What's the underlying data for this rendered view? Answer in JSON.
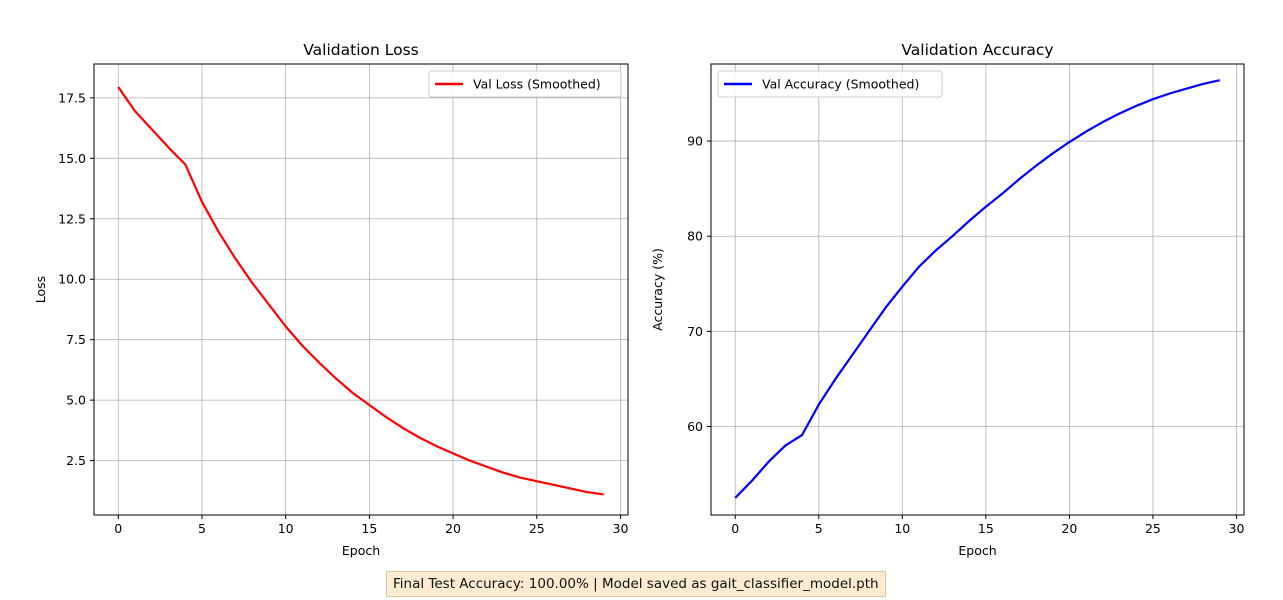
{
  "chart_data": [
    {
      "type": "line",
      "title": "Validation Loss",
      "xlabel": "Epoch",
      "ylabel": "Loss",
      "xlim": [
        -1.45,
        30.45
      ],
      "ylim": [
        0.25,
        18.9
      ],
      "xticks": [
        0,
        5,
        10,
        15,
        20,
        25,
        30
      ],
      "xtick_labels": [
        "0",
        "5",
        "10",
        "15",
        "20",
        "25",
        "30"
      ],
      "yticks": [
        2.5,
        5.0,
        7.5,
        10.0,
        12.5,
        15.0,
        17.5
      ],
      "ytick_labels": [
        "2.5",
        "5.0",
        "7.5",
        "10.0",
        "12.5",
        "15.0",
        "17.5"
      ],
      "grid": true,
      "legend_position": "upper-right",
      "series": [
        {
          "name": "Val Loss (Smoothed)",
          "color": "#ff0000",
          "x": [
            0,
            1,
            2,
            3,
            4,
            5,
            6,
            7,
            8,
            9,
            10,
            11,
            12,
            13,
            14,
            15,
            16,
            17,
            18,
            19,
            20,
            21,
            22,
            23,
            24,
            25,
            26,
            27,
            28,
            29
          ],
          "y": [
            17.95,
            16.95,
            16.2,
            15.45,
            14.75,
            13.2,
            11.95,
            10.85,
            9.85,
            8.95,
            8.05,
            7.25,
            6.55,
            5.9,
            5.3,
            4.8,
            4.3,
            3.85,
            3.45,
            3.1,
            2.8,
            2.5,
            2.25,
            2.0,
            1.8,
            1.65,
            1.5,
            1.35,
            1.2,
            1.1
          ]
        }
      ]
    },
    {
      "type": "line",
      "title": "Validation Accuracy",
      "xlabel": "Epoch",
      "ylabel": "Accuracy (%)",
      "xlim": [
        -1.45,
        30.45
      ],
      "ylim": [
        50.7,
        98.1
      ],
      "xticks": [
        0,
        5,
        10,
        15,
        20,
        25,
        30
      ],
      "xtick_labels": [
        "0",
        "5",
        "10",
        "15",
        "20",
        "25",
        "30"
      ],
      "yticks": [
        60,
        70,
        80,
        90
      ],
      "ytick_labels": [
        "60",
        "70",
        "80",
        "90"
      ],
      "grid": true,
      "legend_position": "upper-left",
      "series": [
        {
          "name": "Val Accuracy (Smoothed)",
          "color": "#0000ff",
          "x": [
            0,
            1,
            2,
            3,
            4,
            5,
            6,
            7,
            8,
            9,
            10,
            11,
            12,
            13,
            14,
            15,
            16,
            17,
            18,
            19,
            20,
            21,
            22,
            23,
            24,
            25,
            26,
            27,
            28,
            29
          ],
          "y": [
            52.5,
            54.3,
            56.3,
            58.0,
            59.1,
            62.3,
            65.0,
            67.5,
            70.0,
            72.5,
            74.7,
            76.8,
            78.5,
            80.0,
            81.6,
            83.1,
            84.5,
            86.0,
            87.4,
            88.7,
            89.9,
            91.0,
            92.0,
            92.9,
            93.7,
            94.4,
            95.0,
            95.5,
            96.0,
            96.4
          ]
        }
      ]
    }
  ],
  "footer": {
    "text": "Final Test Accuracy: 100.00% | Model saved as gait_classifier_model.pth",
    "background": "#fdebd0"
  }
}
